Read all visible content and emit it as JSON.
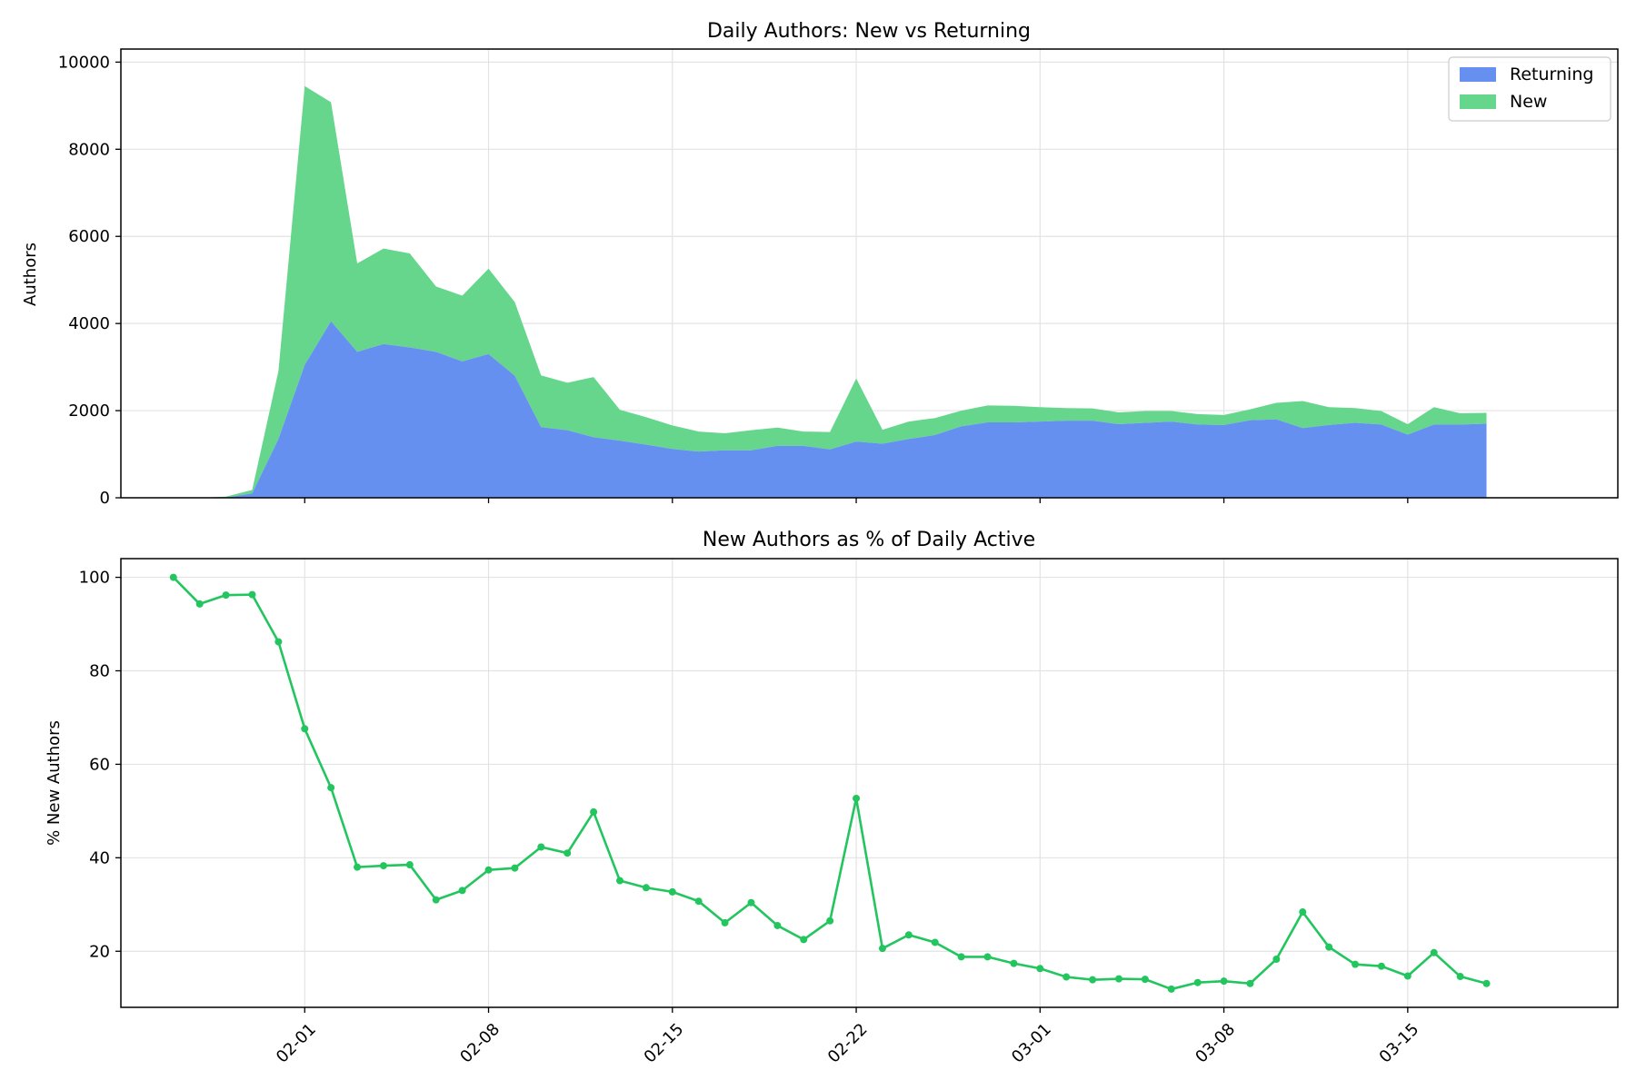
{
  "colors": {
    "returning": "#6690f0",
    "new": "#66d68d",
    "line": "#22c55e"
  },
  "chart_data": [
    {
      "type": "area",
      "title": "Daily Authors: New vs Returning",
      "xlabel": "",
      "ylabel": "Authors",
      "x_range": [
        "2026-01-25",
        "2026-03-23"
      ],
      "ylim": [
        0,
        10300
      ],
      "yticks": [
        0,
        2000,
        4000,
        6000,
        8000,
        10000
      ],
      "stacked": true,
      "grid": true,
      "legend_position": "top-right",
      "x": [
        "01-25",
        "01-26",
        "01-27",
        "01-28",
        "01-29",
        "01-30",
        "01-31",
        "02-01",
        "02-02",
        "02-03",
        "02-04",
        "02-05",
        "02-06",
        "02-07",
        "02-08",
        "02-09",
        "02-10",
        "02-11",
        "02-12",
        "02-13",
        "02-14",
        "02-15",
        "02-16",
        "02-17",
        "02-18",
        "02-19",
        "02-20",
        "02-21",
        "02-22",
        "02-23",
        "02-24",
        "02-25",
        "02-26",
        "02-27",
        "02-28",
        "03-01",
        "03-02",
        "03-03",
        "03-04",
        "03-05",
        "03-06",
        "03-07",
        "03-08",
        "03-09",
        "03-10",
        "03-11",
        "03-12",
        "03-13",
        "03-14",
        "03-15",
        "03-16",
        "03-17",
        "03-18"
      ],
      "series": [
        {
          "name": "Returning",
          "values": [
            0,
            0,
            0,
            0,
            5,
            100,
            1350,
            3050,
            4050,
            3350,
            3530,
            3450,
            3350,
            3130,
            3300,
            2800,
            1620,
            1550,
            1390,
            1310,
            1220,
            1120,
            1060,
            1090,
            1090,
            1190,
            1190,
            1110,
            1290,
            1240,
            1350,
            1440,
            1640,
            1730,
            1730,
            1750,
            1770,
            1770,
            1690,
            1720,
            1750,
            1680,
            1670,
            1780,
            1800,
            1600,
            1670,
            1720,
            1680,
            1450,
            1680,
            1680,
            1700
          ]
        },
        {
          "name": "New",
          "values": [
            0,
            0,
            0,
            0,
            20,
            80,
            1560,
            6400,
            5030,
            2030,
            2190,
            2160,
            1500,
            1510,
            1960,
            1690,
            1190,
            1090,
            1380,
            710,
            630,
            540,
            460,
            390,
            460,
            420,
            330,
            400,
            1450,
            320,
            400,
            390,
            360,
            390,
            380,
            330,
            290,
            280,
            270,
            270,
            240,
            240,
            230,
            250,
            380,
            620,
            410,
            340,
            310,
            240,
            400,
            260,
            250
          ]
        }
      ]
    },
    {
      "type": "line",
      "title": "New Authors as % of Daily Active",
      "xlabel": "",
      "ylabel": "% New Authors",
      "x_range": [
        "2026-01-25",
        "2026-03-23"
      ],
      "ylim": [
        8,
        104
      ],
      "yticks": [
        20,
        40,
        60,
        80,
        100
      ],
      "grid": true,
      "xtick_labels": [
        "02-01",
        "02-08",
        "02-15",
        "02-22",
        "03-01",
        "03-08",
        "03-15"
      ],
      "x": [
        "01-27",
        "01-28",
        "01-29",
        "01-30",
        "01-31",
        "02-01",
        "02-02",
        "02-03",
        "02-04",
        "02-05",
        "02-06",
        "02-07",
        "02-08",
        "02-09",
        "02-10",
        "02-11",
        "02-12",
        "02-13",
        "02-14",
        "02-15",
        "02-16",
        "02-17",
        "02-18",
        "02-19",
        "02-20",
        "02-21",
        "02-22",
        "02-23",
        "02-24",
        "02-25",
        "02-26",
        "02-27",
        "02-28",
        "03-01",
        "03-02",
        "03-03",
        "03-04",
        "03-05",
        "03-06",
        "03-07",
        "03-08",
        "03-09",
        "03-10",
        "03-11",
        "03-12",
        "03-13",
        "03-14",
        "03-15",
        "03-16",
        "03-17",
        "03-18"
      ],
      "series": [
        {
          "name": "",
          "values": [
            100,
            94.3,
            96.2,
            96.3,
            86.2,
            67.6,
            55,
            38,
            38.3,
            38.5,
            31,
            33,
            37.4,
            37.8,
            42.3,
            41,
            49.8,
            35.1,
            33.6,
            32.7,
            30.7,
            26.1,
            30.4,
            25.5,
            22.5,
            26.5,
            52.7,
            20.6,
            23.5,
            21.9,
            18.8,
            18.8,
            17.4,
            16.3,
            14.5,
            13.9,
            14.1,
            14,
            11.9,
            13.3,
            13.6,
            13.1,
            18.3,
            28.4,
            20.9,
            17.2,
            16.8,
            14.7,
            19.7,
            14.6,
            13.1
          ]
        }
      ]
    }
  ]
}
